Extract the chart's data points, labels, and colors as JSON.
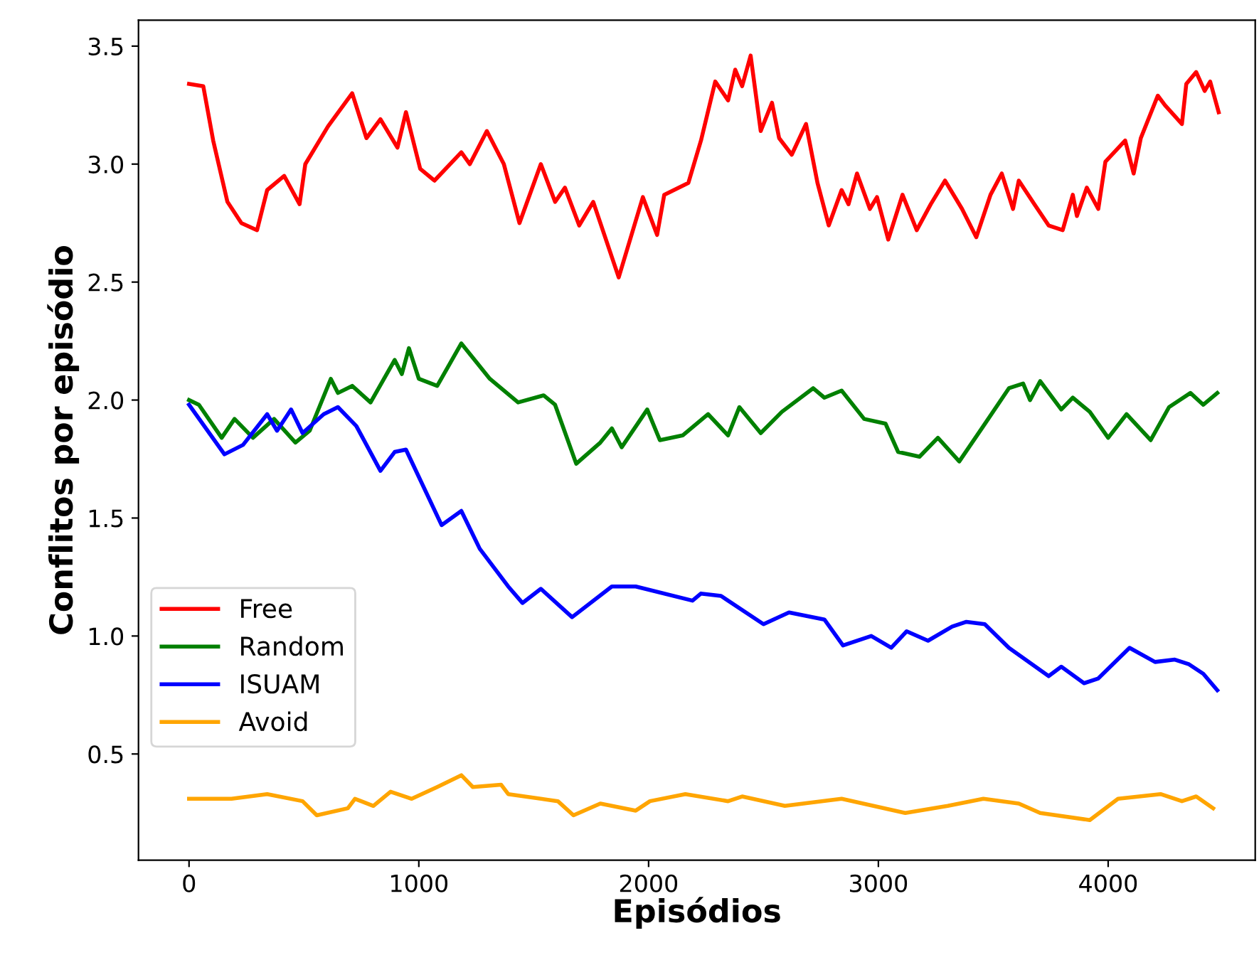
{
  "chart_data": {
    "type": "line",
    "xlabel": "Episódios",
    "ylabel": "Conflitos por episódio",
    "xlim": [
      -220,
      4640
    ],
    "ylim": [
      0.05,
      3.61
    ],
    "xticks": [
      0,
      1000,
      2000,
      3000,
      4000
    ],
    "yticks": [
      {
        "value": 0.5,
        "label": "0.5"
      },
      {
        "value": 1,
        "label": "1.0"
      },
      {
        "value": 1.5,
        "label": "1.5"
      },
      {
        "value": 2,
        "label": "2.0"
      },
      {
        "value": 2.5,
        "label": "2.5"
      },
      {
        "value": 3,
        "label": "3.0"
      },
      {
        "value": 3.5,
        "label": "3.5"
      }
    ],
    "grid": false,
    "legend": "lower left",
    "line_style": "solid",
    "marker": "none",
    "series": [
      {
        "name": "Free",
        "color": "#ff0000",
        "x": [
          0,
          62,
          105,
          167,
          228,
          296,
          340,
          414,
          481,
          506,
          605,
          710,
          772,
          833,
          907,
          944,
          1006,
          1068,
          1185,
          1222,
          1296,
          1370,
          1438,
          1531,
          1593,
          1636,
          1698,
          1759,
          1870,
          1975,
          2037,
          2068,
          2173,
          2228,
          2290,
          2346,
          2377,
          2407,
          2444,
          2488,
          2537,
          2568,
          2623,
          2685,
          2735,
          2784,
          2840,
          2870,
          2907,
          2963,
          2994,
          3043,
          3105,
          3167,
          3228,
          3290,
          3364,
          3426,
          3488,
          3537,
          3586,
          3611,
          3679,
          3741,
          3802,
          3846,
          3864,
          3907,
          3957,
          3988,
          4074,
          4111,
          4142,
          4216,
          4247,
          4321,
          4340,
          4383,
          4420,
          4444,
          4481
        ],
        "values": [
          3.34,
          3.33,
          3.1,
          2.84,
          2.75,
          2.72,
          2.89,
          2.95,
          2.83,
          3.0,
          3.16,
          3.3,
          3.11,
          3.19,
          3.07,
          3.22,
          2.98,
          2.93,
          3.05,
          3.0,
          3.14,
          3.0,
          2.75,
          3.0,
          2.84,
          2.9,
          2.74,
          2.84,
          2.52,
          2.86,
          2.7,
          2.87,
          2.92,
          3.1,
          3.35,
          3.27,
          3.4,
          3.33,
          3.46,
          3.14,
          3.26,
          3.11,
          3.04,
          3.17,
          2.92,
          2.74,
          2.89,
          2.83,
          2.96,
          2.81,
          2.86,
          2.68,
          2.87,
          2.72,
          2.83,
          2.93,
          2.81,
          2.69,
          2.87,
          2.96,
          2.81,
          2.93,
          2.83,
          2.74,
          2.72,
          2.87,
          2.78,
          2.9,
          2.81,
          3.01,
          3.1,
          2.96,
          3.11,
          3.29,
          3.25,
          3.17,
          3.34,
          3.39,
          3.31,
          3.35,
          3.22
        ]
      },
      {
        "name": "Random",
        "color": "#008000",
        "x": [
          0,
          43,
          142,
          198,
          278,
          370,
          463,
          525,
          617,
          648,
          710,
          790,
          895,
          926,
          957,
          1000,
          1080,
          1185,
          1309,
          1432,
          1543,
          1593,
          1685,
          1790,
          1840,
          1883,
          1994,
          2049,
          2148,
          2259,
          2346,
          2395,
          2488,
          2580,
          2716,
          2765,
          2840,
          2938,
          3031,
          3086,
          3179,
          3259,
          3352,
          3457,
          3568,
          3630,
          3660,
          3704,
          3796,
          3846,
          3920,
          4000,
          4080,
          4185,
          4265,
          4358,
          4414,
          4475
        ],
        "values": [
          2.0,
          1.98,
          1.84,
          1.92,
          1.84,
          1.92,
          1.82,
          1.87,
          2.09,
          2.03,
          2.06,
          1.99,
          2.17,
          2.11,
          2.22,
          2.09,
          2.06,
          2.24,
          2.09,
          1.99,
          2.02,
          1.98,
          1.73,
          1.82,
          1.88,
          1.8,
          1.96,
          1.83,
          1.85,
          1.94,
          1.85,
          1.97,
          1.86,
          1.95,
          2.05,
          2.01,
          2.04,
          1.92,
          1.9,
          1.78,
          1.76,
          1.84,
          1.74,
          1.89,
          2.05,
          2.07,
          2.0,
          2.08,
          1.96,
          2.01,
          1.95,
          1.84,
          1.94,
          1.83,
          1.97,
          2.03,
          1.98,
          2.03
        ]
      },
      {
        "name": "ISUAM",
        "color": "#0000ff",
        "x": [
          0,
          154,
          235,
          340,
          383,
          444,
          494,
          586,
          648,
          728,
          833,
          895,
          944,
          1099,
          1185,
          1265,
          1389,
          1451,
          1531,
          1667,
          1840,
          1944,
          2191,
          2228,
          2315,
          2500,
          2611,
          2765,
          2846,
          2969,
          3056,
          3123,
          3216,
          3321,
          3383,
          3463,
          3568,
          3741,
          3796,
          3895,
          3957,
          4093,
          4204,
          4290,
          4352,
          4414,
          4475
        ],
        "values": [
          1.98,
          1.77,
          1.81,
          1.94,
          1.87,
          1.96,
          1.86,
          1.94,
          1.97,
          1.89,
          1.7,
          1.78,
          1.79,
          1.47,
          1.53,
          1.37,
          1.21,
          1.14,
          1.2,
          1.08,
          1.21,
          1.21,
          1.15,
          1.18,
          1.17,
          1.05,
          1.1,
          1.07,
          0.96,
          1.0,
          0.95,
          1.02,
          0.98,
          1.04,
          1.06,
          1.05,
          0.95,
          0.83,
          0.87,
          0.8,
          0.82,
          0.95,
          0.89,
          0.9,
          0.88,
          0.84,
          0.77
        ]
      },
      {
        "name": "Avoid",
        "color": "#ffa500",
        "x": [
          0,
          185,
          340,
          494,
          556,
          691,
          722,
          802,
          877,
          969,
          1080,
          1185,
          1235,
          1358,
          1389,
          1605,
          1673,
          1790,
          1944,
          2006,
          2160,
          2346,
          2407,
          2593,
          2840,
          3117,
          3302,
          3457,
          3611,
          3704,
          3920,
          4043,
          4228,
          4321,
          4383,
          4457
        ],
        "values": [
          0.31,
          0.31,
          0.33,
          0.3,
          0.24,
          0.27,
          0.31,
          0.28,
          0.34,
          0.31,
          0.36,
          0.41,
          0.36,
          0.37,
          0.33,
          0.3,
          0.24,
          0.29,
          0.26,
          0.3,
          0.33,
          0.3,
          0.32,
          0.28,
          0.31,
          0.25,
          0.28,
          0.31,
          0.29,
          0.25,
          0.22,
          0.31,
          0.33,
          0.3,
          0.32,
          0.27
        ]
      }
    ]
  }
}
